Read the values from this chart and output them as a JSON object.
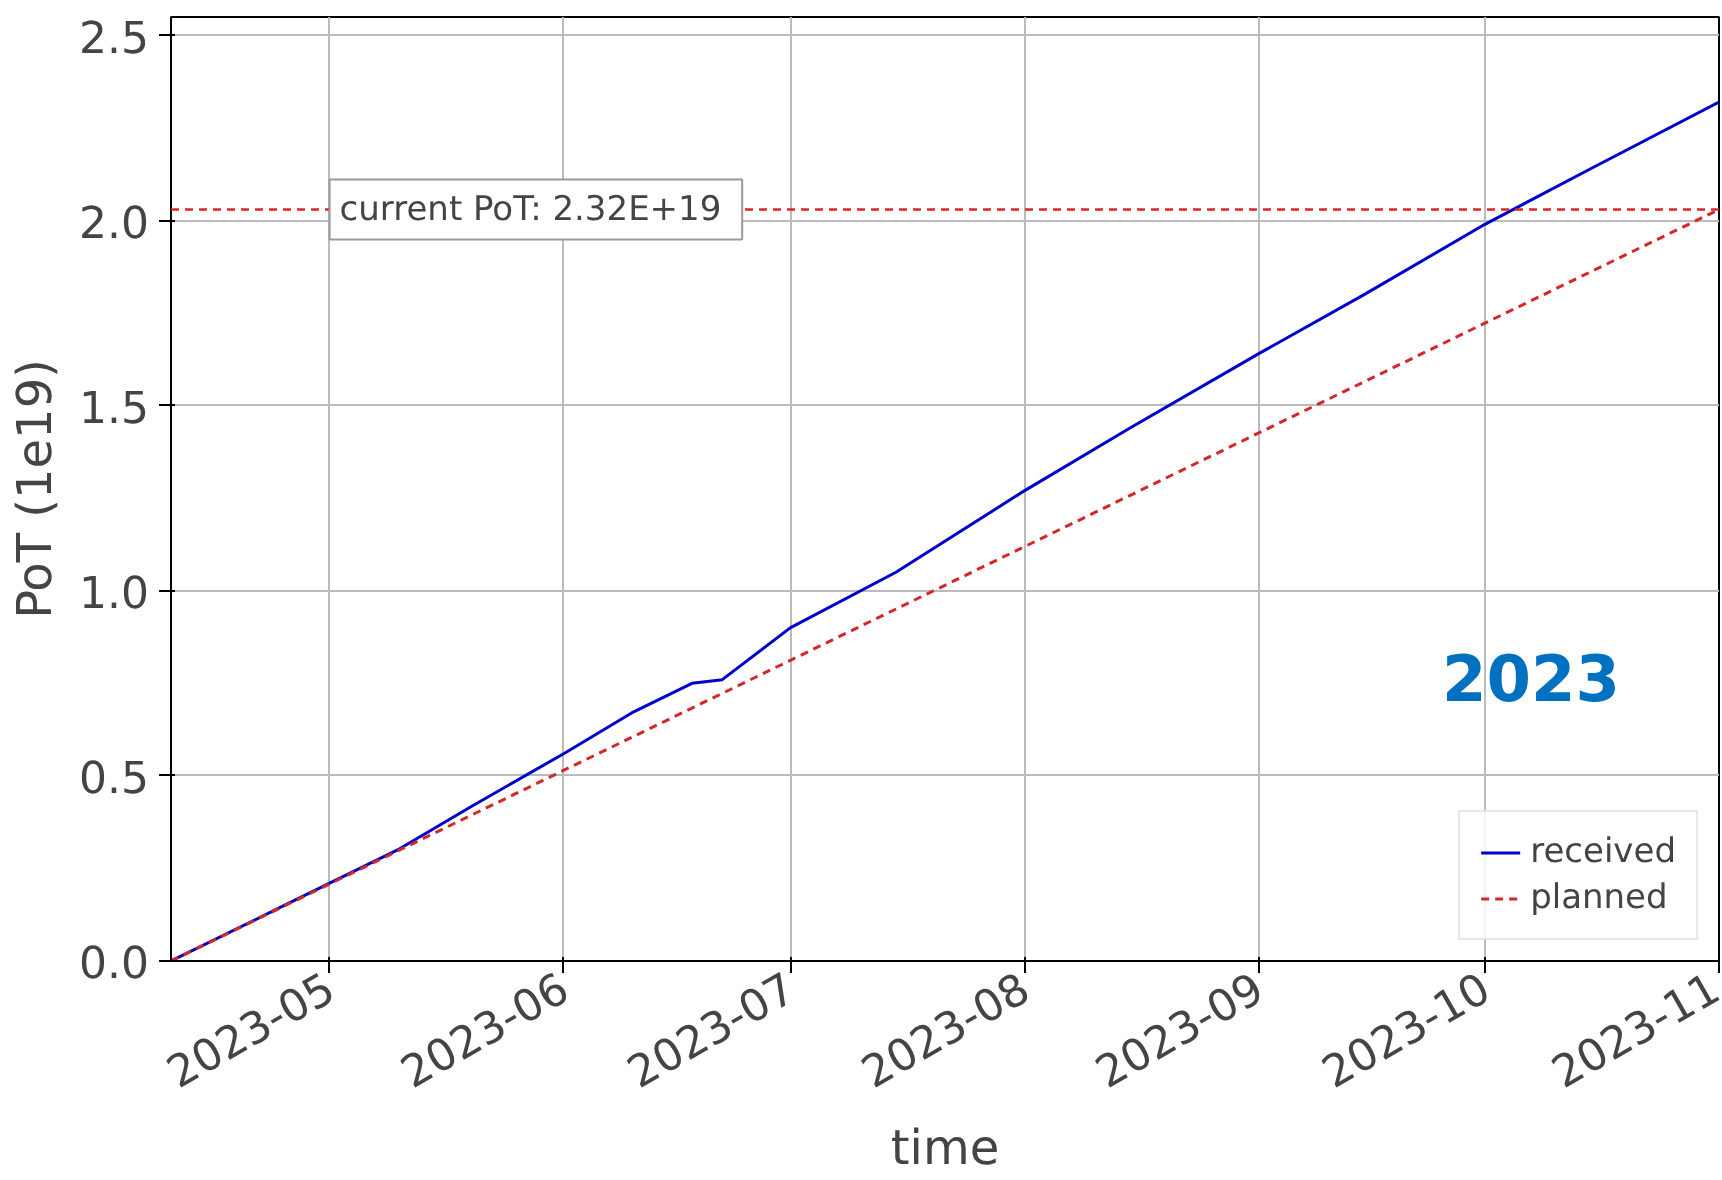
{
  "chart_data": {
    "type": "line",
    "xlabel": "time",
    "ylabel": "PoT (1e19)",
    "xlim": [
      "2023-04-10",
      "2023-11-01"
    ],
    "ylim": [
      0,
      2.55
    ],
    "xticks": [
      {
        "value": "2023-05-01",
        "label": "2023-05"
      },
      {
        "value": "2023-06-01",
        "label": "2023-06"
      },
      {
        "value": "2023-07-01",
        "label": "2023-07"
      },
      {
        "value": "2023-08-01",
        "label": "2023-08"
      },
      {
        "value": "2023-09-01",
        "label": "2023-09"
      },
      {
        "value": "2023-10-01",
        "label": "2023-10"
      },
      {
        "value": "2023-11-01",
        "label": "2023-11"
      }
    ],
    "yticks": [
      {
        "value": 0,
        "label": "0.0"
      },
      {
        "value": 0.5,
        "label": "0.5"
      },
      {
        "value": 1,
        "label": "1.0"
      },
      {
        "value": 1.5,
        "label": "1.5"
      },
      {
        "value": 2,
        "label": "2.0"
      },
      {
        "value": 2.5,
        "label": "2.5"
      }
    ],
    "grid": true,
    "legend": "bottom right",
    "series": [
      {
        "name": "received",
        "color": "#0000cc",
        "line_style": "solid",
        "x": [
          "2023-04-10",
          "2023-04-25",
          "2023-05-10",
          "2023-05-20",
          "2023-06-01",
          "2023-06-10",
          "2023-06-18",
          "2023-06-22",
          "2023-07-01",
          "2023-07-15",
          "2023-08-01",
          "2023-08-15",
          "2023-09-01",
          "2023-09-15",
          "2023-10-01",
          "2023-10-15",
          "2023-11-01"
        ],
        "values": [
          0,
          0.15,
          0.3,
          0.42,
          0.56,
          0.67,
          0.75,
          0.76,
          0.9,
          1.05,
          1.27,
          1.44,
          1.64,
          1.8,
          1.99,
          2.14,
          2.32
        ]
      },
      {
        "name": "planned",
        "color": "#d62728",
        "line_style": "dashed",
        "x": [
          "2023-04-10",
          "2023-11-01"
        ],
        "values": [
          0,
          2.03
        ]
      }
    ],
    "ref_lines": [
      {
        "axis": "y",
        "value": 2.03,
        "color": "#d62728",
        "line_style": "dashed"
      }
    ],
    "annotations": [
      {
        "text": "current PoT:  2.32E+19",
        "x": "2023-05-01",
        "y": 2.03
      },
      "2023"
    ]
  }
}
